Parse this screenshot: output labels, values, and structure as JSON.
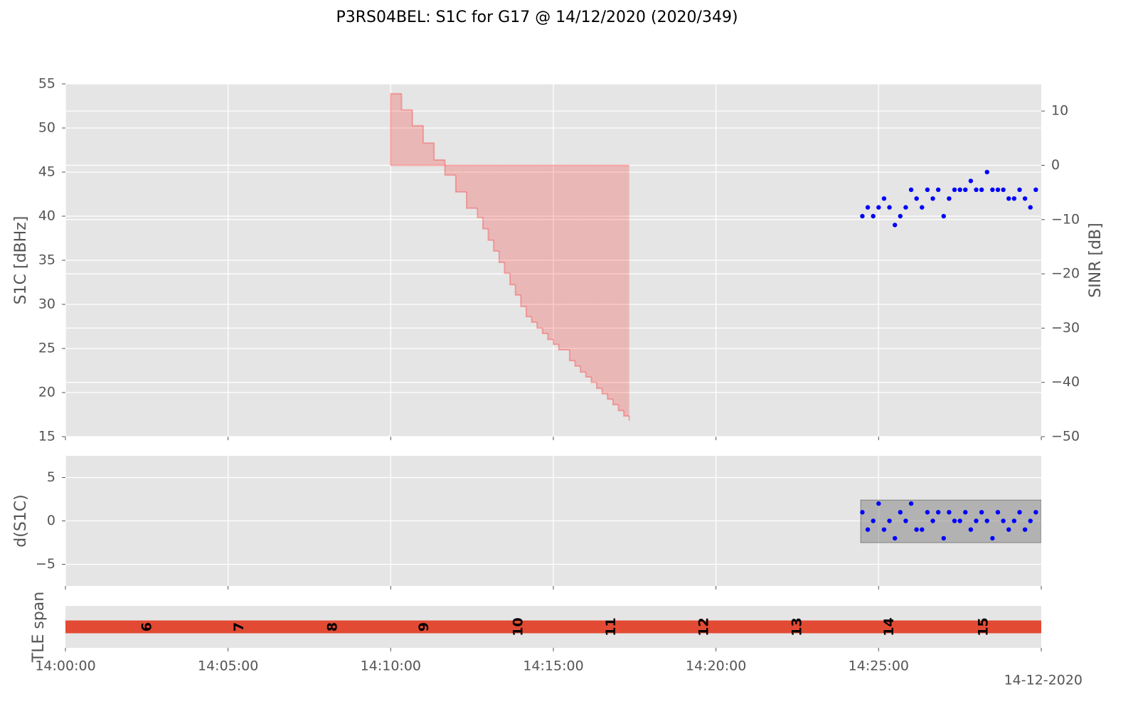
{
  "title": "P3RS04BEL: S1C for G17 @ 14/12/2020 (2020/349)",
  "chart_data": [
    {
      "type": "scatter",
      "ylabel": "S1C [dBHz]",
      "y2label": "SINR [dB]",
      "ylim": [
        15,
        55
      ],
      "yticks": [
        15,
        20,
        25,
        30,
        35,
        40,
        45,
        50,
        55
      ],
      "y2lim": [
        -50,
        15
      ],
      "y2ticks": [
        {
          "value": -50,
          "label": "−50"
        },
        {
          "value": -40,
          "label": "−40"
        },
        {
          "value": -30,
          "label": "−30"
        },
        {
          "value": -20,
          "label": "−20"
        },
        {
          "value": -10,
          "label": "−10"
        },
        0,
        10
      ],
      "grid": true,
      "series": [
        {
          "type": "step",
          "axis": "y2",
          "color": "#ff0000",
          "fill": true,
          "x": [
            "14:10:00",
            "14:10:20",
            "14:10:40",
            "14:11:00",
            "14:11:20",
            "14:11:40",
            "14:12:00",
            "14:12:20",
            "14:12:40",
            "14:12:50",
            "14:13:00",
            "14:13:10",
            "14:13:20",
            "14:13:30",
            "14:13:40",
            "14:13:50",
            "14:14:00",
            "14:14:10",
            "14:14:20",
            "14:14:30",
            "14:14:40",
            "14:14:50",
            "14:15:00",
            "14:15:10",
            "14:15:30",
            "14:15:40",
            "14:15:50",
            "14:16:00",
            "14:16:10",
            "14:16:20",
            "14:16:30",
            "14:16:40",
            "14:16:50",
            "14:17:00",
            "14:17:10",
            "14:17:20"
          ],
          "values": [
            13.2,
            10.2,
            7.3,
            4.1,
            1.0,
            -1.8,
            -4.9,
            -7.9,
            -9.6,
            -11.7,
            -13.8,
            -15.8,
            -17.9,
            -19.9,
            -22.0,
            -23.9,
            -26.0,
            -27.9,
            -28.9,
            -30.0,
            -31.0,
            -32.1,
            -33.0,
            -34.0,
            -36.0,
            -37.0,
            -38.1,
            -39.0,
            -40.0,
            -41.1,
            -42.1,
            -43.1,
            -44.1,
            -45.2,
            -46.2,
            -47.1
          ]
        },
        {
          "type": "scatter",
          "color": "#0000ff",
          "x": [
            "14:24:30",
            "14:24:40",
            "14:24:50",
            "14:25:00",
            "14:25:10",
            "14:25:20",
            "14:25:30",
            "14:25:40",
            "14:25:50",
            "14:26:00",
            "14:26:10",
            "14:26:20",
            "14:26:30",
            "14:26:40",
            "14:26:50",
            "14:27:00",
            "14:27:10",
            "14:27:20",
            "14:27:30",
            "14:27:40",
            "14:27:50",
            "14:28:00",
            "14:28:10",
            "14:28:20",
            "14:28:30",
            "14:28:40",
            "14:28:50",
            "14:29:00",
            "14:29:10",
            "14:29:20",
            "14:29:30",
            "14:29:40",
            "14:29:50"
          ],
          "values": [
            40,
            41,
            40,
            41,
            42,
            41,
            39,
            40,
            41,
            43,
            42,
            41,
            43,
            42,
            43,
            40,
            42,
            43,
            43,
            43,
            44,
            43,
            43,
            45,
            43,
            43,
            43,
            42,
            42,
            43,
            42,
            41,
            43
          ]
        }
      ]
    },
    {
      "type": "scatter",
      "ylabel": "d(S1C)",
      "ylim": [
        -7.5,
        7.5
      ],
      "yticks": [
        {
          "value": -5,
          "label": "−5"
        },
        0,
        5
      ],
      "grid": true,
      "band": {
        "x": [
          "14:24:27",
          "14:30:00"
        ],
        "y": [
          -2.5,
          2.4
        ],
        "color": "#808080"
      },
      "series": [
        {
          "type": "scatter",
          "color": "#0000ff",
          "x": [
            "14:24:30",
            "14:24:40",
            "14:24:50",
            "14:25:00",
            "14:25:10",
            "14:25:20",
            "14:25:30",
            "14:25:40",
            "14:25:50",
            "14:26:00",
            "14:26:10",
            "14:26:20",
            "14:26:30",
            "14:26:40",
            "14:26:50",
            "14:27:00",
            "14:27:10",
            "14:27:20",
            "14:27:30",
            "14:27:40",
            "14:27:50",
            "14:28:00",
            "14:28:10",
            "14:28:20",
            "14:28:30",
            "14:28:40",
            "14:28:50",
            "14:29:00",
            "14:29:10",
            "14:29:20",
            "14:29:30",
            "14:29:40",
            "14:29:50"
          ],
          "values": [
            1,
            -1,
            0,
            2,
            -1,
            0,
            -2,
            1,
            0,
            2,
            -1,
            -1,
            1,
            0,
            1,
            -2,
            1,
            0,
            0,
            1,
            -1,
            0,
            1,
            0,
            -2,
            1,
            0,
            -1,
            0,
            1,
            -1,
            0,
            1
          ]
        }
      ]
    },
    {
      "type": "span",
      "ylabel": "TLE span",
      "xlim": [
        "14:00:00",
        "14:30:00"
      ],
      "xticks": [
        "14:00:00",
        "14:05:00",
        "14:10:00",
        "14:15:00",
        "14:20:00",
        "14:25:00"
      ],
      "date_label": "14-12-2020",
      "bar": {
        "start": "14:00:00",
        "end": "14:30:00",
        "color": "#e24a33"
      },
      "labels": [
        {
          "x": "14:02:31",
          "text": "6"
        },
        {
          "x": "14:05:21",
          "text": "7"
        },
        {
          "x": "14:08:13",
          "text": "8"
        },
        {
          "x": "14:11:02",
          "text": "9"
        },
        {
          "x": "14:13:56",
          "text": "10"
        },
        {
          "x": "14:16:47",
          "text": "11"
        },
        {
          "x": "14:19:38",
          "text": "12"
        },
        {
          "x": "14:22:30",
          "text": "13"
        },
        {
          "x": "14:25:20",
          "text": "14"
        },
        {
          "x": "14:28:14",
          "text": "15"
        }
      ]
    }
  ]
}
